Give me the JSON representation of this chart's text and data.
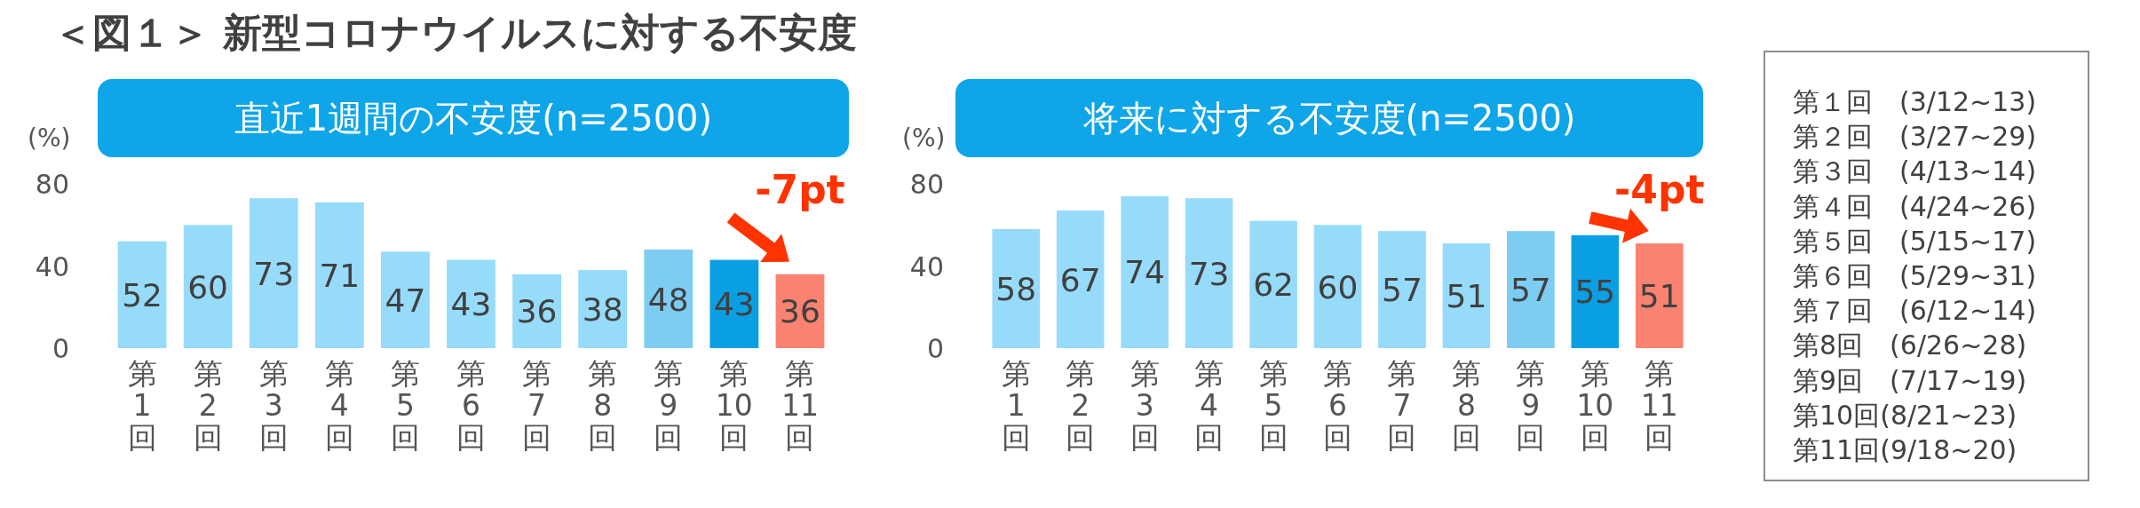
{
  "chart_data": [
    {
      "type": "bar",
      "title": "＜図１＞ 新型コロナウイルスに対する不安度",
      "subtitle": "直近1週間の不安度(n=2500)",
      "ylabel": "(%)",
      "categories": [
        "第1回",
        "第2回",
        "第3回",
        "第4回",
        "第5回",
        "第6回",
        "第7回",
        "第8回",
        "第9回",
        "第10回",
        "第11回"
      ],
      "values": [
        52,
        60,
        73,
        71,
        47,
        43,
        36,
        38,
        48,
        43,
        36
      ],
      "colors": [
        "#97dbfa",
        "#97dbfa",
        "#97dbfa",
        "#97dbfa",
        "#97dbfa",
        "#97dbfa",
        "#97dbfa",
        "#97dbfa",
        "#7dcdf2",
        "#0a9fe3",
        "#fa8270"
      ],
      "ylim": [
        0,
        80
      ],
      "yticks": [
        0,
        40,
        80
      ],
      "data_labels": true,
      "annotations": [
        {
          "text": "-7pt",
          "x": "第11回",
          "y": 36
        }
      ]
    },
    {
      "type": "bar",
      "title": "将来に対する不安度(n=2500)",
      "ylabel": "(%)",
      "categories": [
        "第1回",
        "第2回",
        "第3回",
        "第4回",
        "第5回",
        "第6回",
        "第7回",
        "第8回",
        "第9回",
        "第10回",
        "第11回"
      ],
      "values": [
        58,
        67,
        74,
        73,
        62,
        60,
        57,
        51,
        57,
        55,
        51
      ],
      "colors": [
        "#97dbfa",
        "#97dbfa",
        "#97dbfa",
        "#97dbfa",
        "#97dbfa",
        "#97dbfa",
        "#97dbfa",
        "#97dbfa",
        "#7dcdf2",
        "#0a9fe3",
        "#fa8270"
      ],
      "ylim": [
        0,
        80
      ],
      "yticks": [
        0,
        40,
        80
      ],
      "data_labels": true,
      "annotations": [
        {
          "text": "-4pt",
          "x": "第11回",
          "y": 51
        }
      ]
    },
    {
      "type": "other",
      "annotations": [
        "第１回　(3/12~13)",
        "第２回　(3/27~29)",
        "第３回　(4/13~14)",
        "第４回　(4/24~26)",
        "第５回　(5/15~17)",
        "第６回　(5/29~31)",
        "第７回　(6/12~14)",
        "第8回　(6/26~28)",
        "第9回　(7/17~19)",
        "第10回(8/21~23)",
        "第11回(9/18~20)"
      ]
    }
  ]
}
